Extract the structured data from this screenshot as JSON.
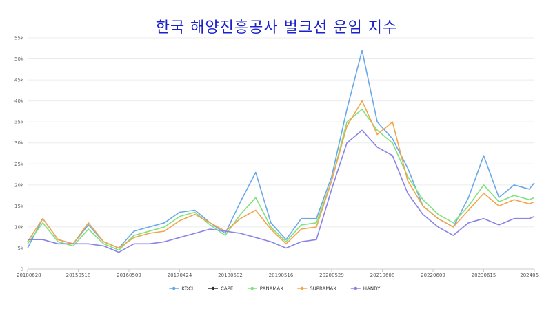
{
  "chart_data": {
    "type": "line",
    "title": "한국 해양진흥공사 벌크선 운임 지수",
    "xlabel": "",
    "ylabel": "",
    "ylim": [
      0,
      55000
    ],
    "y_ticks": [
      "0",
      "5k",
      "10k",
      "15k",
      "20k",
      "25k",
      "30k",
      "35k",
      "40k",
      "45k",
      "50k",
      "55k"
    ],
    "x_ticks": [
      "20180628",
      "20150518",
      "20160509",
      "20170424",
      "20180502",
      "20190516",
      "20200529",
      "20210608",
      "20220609",
      "20230615",
      "202406"
    ],
    "grid": "horizontal",
    "legend_position": "bottom",
    "x_index": [
      0,
      3,
      6,
      9,
      12,
      15,
      18,
      21,
      24,
      27,
      30,
      33,
      36,
      39,
      42,
      45,
      48,
      51,
      54,
      57,
      60,
      63,
      66,
      69,
      72,
      75,
      78,
      81,
      84,
      87,
      90,
      93,
      96,
      99,
      100
    ],
    "series": [
      {
        "name": "KDCI",
        "color": "#6aa8e8",
        "values": [
          5000,
          12000,
          7000,
          6000,
          10500,
          6500,
          5000,
          9000,
          10000,
          11000,
          13500,
          14000,
          11000,
          8500,
          16000,
          23000,
          11000,
          7000,
          12000,
          12000,
          22000,
          38000,
          52000,
          35000,
          31000,
          24000,
          15000,
          12000,
          10000,
          17000,
          27000,
          17000,
          20000,
          19000,
          20500
        ]
      },
      {
        "name": "CAPE",
        "color": "#333333",
        "values": []
      },
      {
        "name": "PANAMAX",
        "color": "#7fe27f",
        "values": [
          6000,
          11000,
          6500,
          5500,
          9500,
          6000,
          4500,
          8000,
          9000,
          10000,
          12500,
          13500,
          10500,
          8000,
          13000,
          17000,
          10000,
          6500,
          10500,
          11000,
          21000,
          35000,
          38000,
          33000,
          30000,
          22000,
          16500,
          13000,
          11000,
          15000,
          20000,
          16000,
          17500,
          16500,
          17000
        ]
      },
      {
        "name": "SUPRAMAX",
        "color": "#f2a54a",
        "values": [
          6500,
          12000,
          7000,
          6000,
          11000,
          6500,
          5000,
          7500,
          8500,
          9000,
          11500,
          13000,
          11000,
          9000,
          12000,
          14000,
          9500,
          6000,
          9500,
          10000,
          21000,
          34000,
          40000,
          32000,
          35000,
          21000,
          15000,
          12000,
          10000,
          14000,
          18000,
          15000,
          16500,
          15500,
          16000
        ]
      },
      {
        "name": "HANDY",
        "color": "#8a83e6",
        "values": [
          7000,
          7000,
          6000,
          6000,
          6000,
          5500,
          4000,
          6000,
          6000,
          6500,
          7500,
          8500,
          9500,
          9000,
          8500,
          7500,
          6500,
          5000,
          6500,
          7000,
          19000,
          30000,
          33000,
          29000,
          27000,
          18000,
          13000,
          10000,
          8000,
          11000,
          12000,
          10500,
          12000,
          12000,
          12500
        ]
      }
    ]
  }
}
